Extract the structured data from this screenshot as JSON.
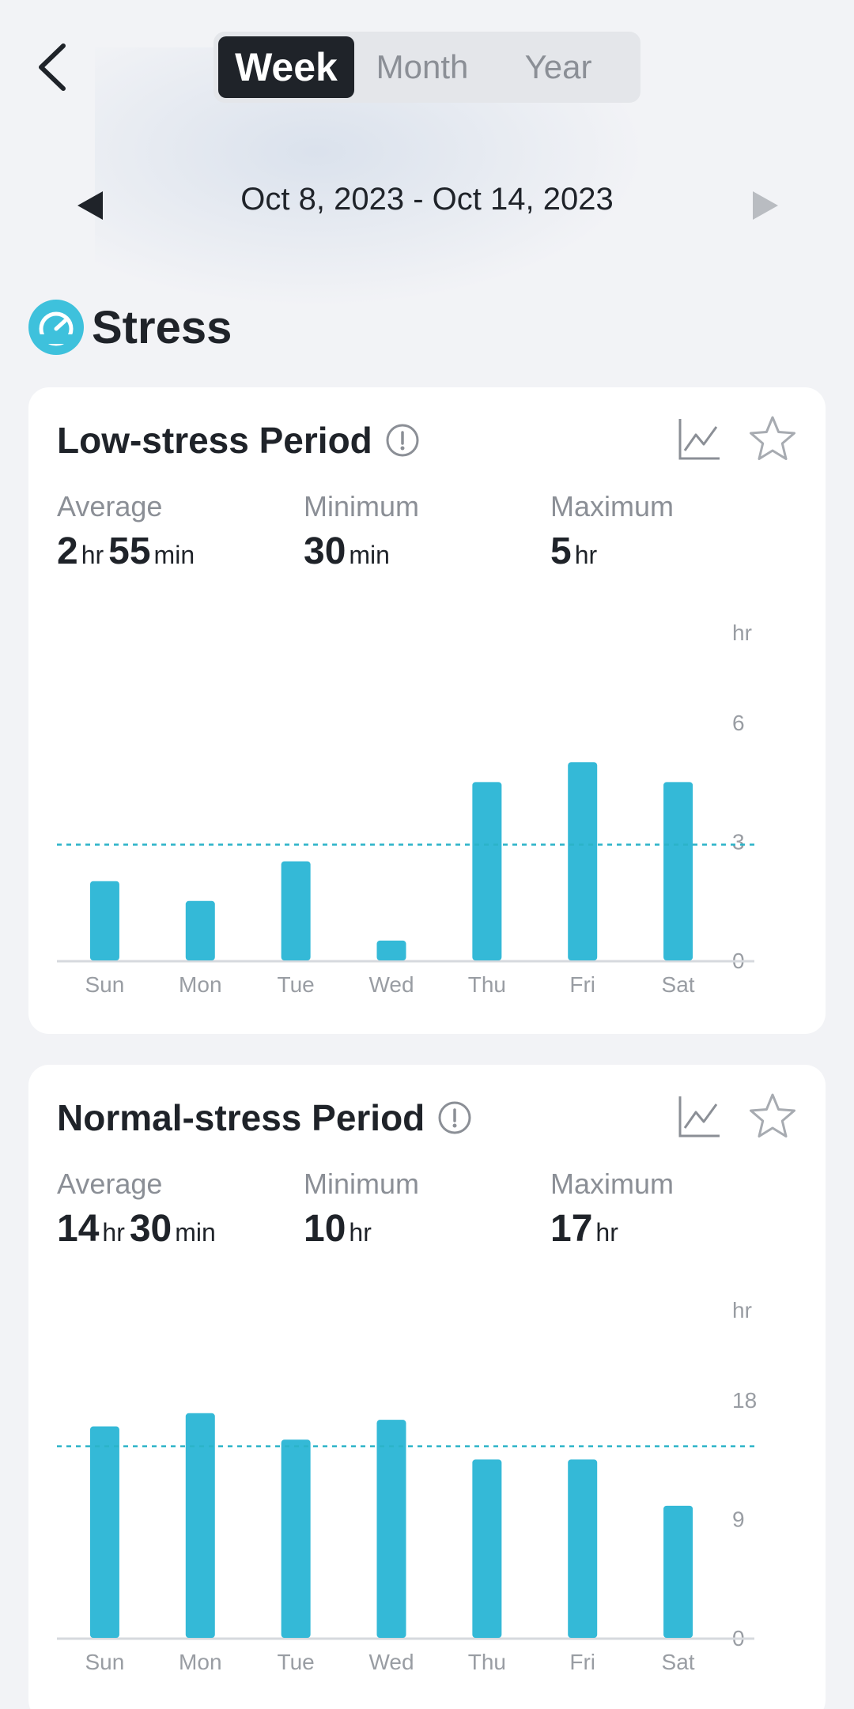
{
  "header": {
    "tabs": [
      {
        "label": "Week",
        "active": true
      },
      {
        "label": "Month",
        "active": false
      },
      {
        "label": "Year",
        "active": false
      }
    ],
    "date_range": "Oct 8, 2023 - Oct 14, 2023",
    "icons": {
      "back": "chevron-left-icon",
      "prev": "triangle-left-icon",
      "next": "triangle-right-icon"
    }
  },
  "section": {
    "title": "Stress",
    "icon": "stress-gauge-icon",
    "icon_color": "#3ec1dc"
  },
  "colors": {
    "bar": "#34b9d7",
    "avg_line": "#2bb3c8",
    "axis": "#d6d9de",
    "tick": "#999da3"
  },
  "cards": [
    {
      "title": "Low-stress Period",
      "stats": [
        {
          "label": "Average",
          "value_parts": [
            {
              "num": "2",
              "unit": "hr"
            },
            {
              "num": "55",
              "unit": "min"
            }
          ]
        },
        {
          "label": "Minimum",
          "value_parts": [
            {
              "num": "30",
              "unit": "min"
            }
          ]
        },
        {
          "label": "Maximum",
          "value_parts": [
            {
              "num": "5",
              "unit": "hr"
            }
          ]
        }
      ]
    },
    {
      "title": "Normal-stress Period",
      "stats": [
        {
          "label": "Average",
          "value_parts": [
            {
              "num": "14",
              "unit": "hr"
            },
            {
              "num": "30",
              "unit": "min"
            }
          ]
        },
        {
          "label": "Minimum",
          "value_parts": [
            {
              "num": "10",
              "unit": "hr"
            }
          ]
        },
        {
          "label": "Maximum",
          "value_parts": [
            {
              "num": "17",
              "unit": "hr"
            }
          ]
        }
      ]
    }
  ],
  "chart_data": [
    {
      "type": "bar",
      "categories": [
        "Sun",
        "Mon",
        "Tue",
        "Wed",
        "Thu",
        "Fri",
        "Sat"
      ],
      "values": [
        2.0,
        1.5,
        2.5,
        0.5,
        4.5,
        5.0,
        4.5
      ],
      "average": 2.92,
      "ylabel": "hr",
      "yticks": [
        0,
        3,
        6
      ],
      "ylim": [
        0,
        6.6
      ],
      "grid": false
    },
    {
      "type": "bar",
      "categories": [
        "Sun",
        "Mon",
        "Tue",
        "Wed",
        "Thu",
        "Fri",
        "Sat"
      ],
      "values": [
        16,
        17,
        15,
        16.5,
        13.5,
        13.5,
        10
      ],
      "average": 14.5,
      "ylabel": "hr",
      "yticks": [
        0,
        9,
        18
      ],
      "ylim": [
        0,
        19.8
      ],
      "grid": false
    }
  ]
}
